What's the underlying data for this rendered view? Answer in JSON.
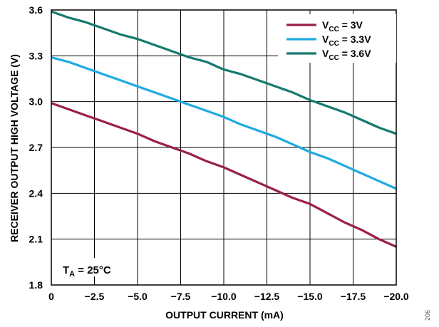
{
  "chart_data": {
    "type": "line",
    "xlabel": "OUTPUT CURRENT (mA)",
    "ylabel": "RECEIVER OUTPUT HIGH VOLTAGE (V)",
    "xlim": [
      0,
      -20
    ],
    "ylim": [
      1.8,
      3.6
    ],
    "x_ticks": [
      "0",
      "−2.5",
      "−5.0",
      "−7.5",
      "−10.0",
      "−12.5",
      "−15.0",
      "−17.5",
      "−20.0"
    ],
    "y_ticks": [
      "1.8",
      "2.1",
      "2.4",
      "2.7",
      "3.0",
      "3.3",
      "3.6"
    ],
    "grid": true,
    "legend_position": "top-right",
    "x": [
      0,
      -1,
      -2,
      -3,
      -4,
      -5,
      -6,
      -7,
      -8,
      -9,
      -10,
      -11,
      -12,
      -13,
      -14,
      -15,
      -16,
      -17,
      -18,
      -19,
      -20
    ],
    "series": [
      {
        "label_main": "V",
        "label_sub": "CC",
        "label_rest": " = 3V",
        "color": "#9a2044",
        "values": [
          2.99,
          2.95,
          2.91,
          2.87,
          2.83,
          2.79,
          2.74,
          2.7,
          2.66,
          2.61,
          2.57,
          2.52,
          2.47,
          2.42,
          2.37,
          2.33,
          2.27,
          2.21,
          2.16,
          2.1,
          2.05
        ]
      },
      {
        "label_main": "V",
        "label_sub": "CC",
        "label_rest": " = 3.3V",
        "color": "#1eaae1",
        "values": [
          3.29,
          3.26,
          3.22,
          3.18,
          3.14,
          3.1,
          3.06,
          3.02,
          2.98,
          2.94,
          2.9,
          2.85,
          2.81,
          2.77,
          2.72,
          2.67,
          2.63,
          2.58,
          2.53,
          2.48,
          2.43
        ]
      },
      {
        "label_main": "V",
        "label_sub": "CC",
        "label_rest": " = 3.6V",
        "color": "#157a6e",
        "values": [
          3.59,
          3.55,
          3.52,
          3.48,
          3.44,
          3.41,
          3.37,
          3.33,
          3.29,
          3.26,
          3.21,
          3.18,
          3.14,
          3.1,
          3.06,
          3.01,
          2.97,
          2.93,
          2.88,
          2.83,
          2.79
        ]
      }
    ],
    "annotation": {
      "main": "T",
      "sub": "A",
      "rest": " = 25°C"
    }
  },
  "figure_id": "206"
}
